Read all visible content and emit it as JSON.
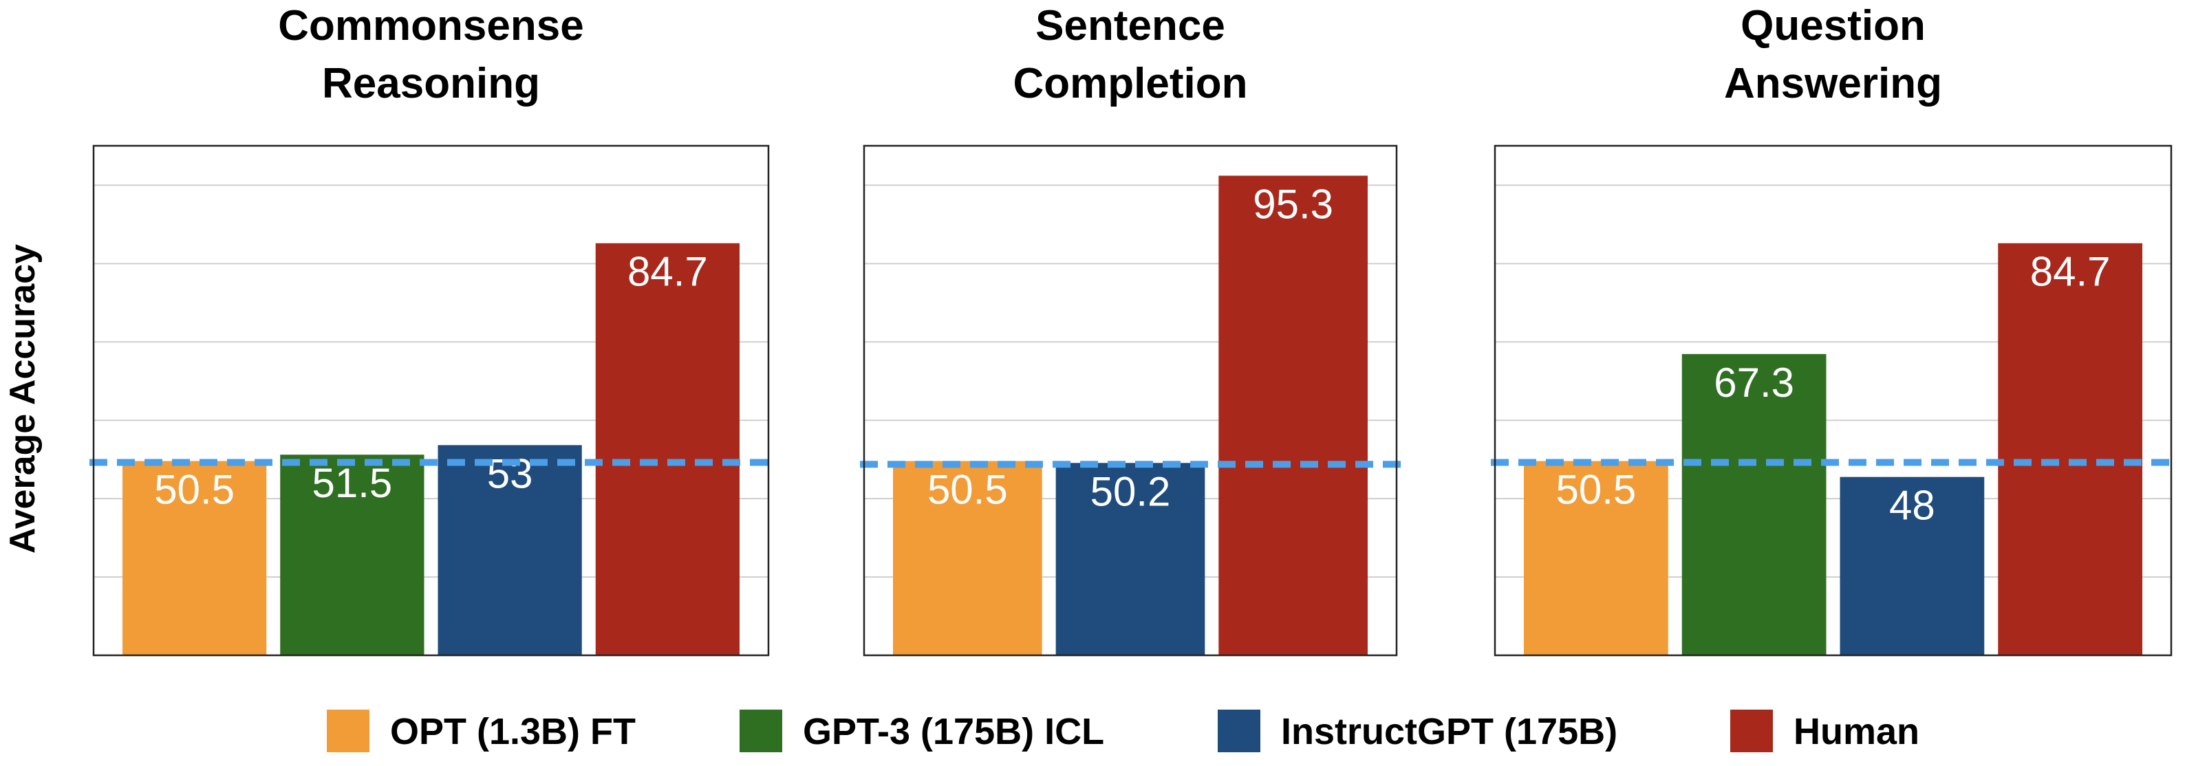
{
  "chart_data": {
    "type": "bar",
    "ylabel": "Average Accuracy",
    "ylim": [
      20,
      100
    ],
    "grid": true,
    "legend": {
      "placement": "bottom",
      "entries": [
        {
          "name": "OPT (1.3B) FT",
          "color": "#F29C38"
        },
        {
          "name": "GPT-3 (175B) ICL",
          "color": "#2E6F21"
        },
        {
          "name": "InstructGPT (175B)",
          "color": "#1F4B7D"
        },
        {
          "name": "Human",
          "color": "#A9281C"
        }
      ]
    },
    "reference_line_color": "#4A9FE8",
    "panels": [
      {
        "title_lines": [
          "Commonsense",
          "Reasoning"
        ],
        "bars": [
          {
            "series": "OPT (1.3B) FT",
            "value": 50.5,
            "label": "50.5"
          },
          {
            "series": "GPT-3 (175B) ICL",
            "value": 51.5,
            "label": "51.5"
          },
          {
            "series": "InstructGPT (175B)",
            "value": 53,
            "label": "53"
          },
          {
            "series": "Human",
            "value": 84.7,
            "label": "84.7"
          }
        ],
        "reference_value": 50.5
      },
      {
        "title_lines": [
          "Sentence",
          "Completion"
        ],
        "bars": [
          {
            "series": "OPT (1.3B) FT",
            "value": 50.5,
            "label": "50.5"
          },
          {
            "series": "InstructGPT (175B)",
            "value": 50.2,
            "label": "50.2"
          },
          {
            "series": "Human",
            "value": 95.3,
            "label": "95.3"
          }
        ],
        "reference_value": 50.2
      },
      {
        "title_lines": [
          "Question",
          "Answering"
        ],
        "bars": [
          {
            "series": "OPT (1.3B) FT",
            "value": 50.5,
            "label": "50.5"
          },
          {
            "series": "GPT-3 (175B) ICL",
            "value": 67.3,
            "label": "67.3"
          },
          {
            "series": "InstructGPT (175B)",
            "value": 48,
            "label": "48"
          },
          {
            "series": "Human",
            "value": 84.7,
            "label": "84.7"
          }
        ],
        "reference_value": 50.5
      }
    ]
  }
}
